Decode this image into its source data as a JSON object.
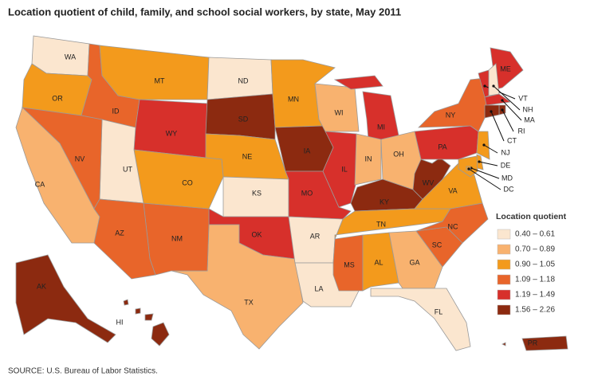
{
  "title": "Location quotient of child, family, and school social workers, by state, May 2011",
  "source": "SOURCE: U.S. Bureau of Labor Statistics.",
  "legend": {
    "title": "Location quotient",
    "items": [
      {
        "label": "0.40 – 0.61",
        "color": "#fbe6cf"
      },
      {
        "label": "0.70 – 0.89",
        "color": "#f8b26f"
      },
      {
        "label": "0.90 – 1.05",
        "color": "#f39a1c"
      },
      {
        "label": "1.09 – 1.18",
        "color": "#e8652a"
      },
      {
        "label": "1.19 – 1.49",
        "color": "#d7302b"
      },
      {
        "label": "1.56 – 2.26",
        "color": "#8c2a10"
      }
    ]
  },
  "states": [
    {
      "name": "WA",
      "color": "#fbe6cf"
    },
    {
      "name": "OR",
      "color": "#f39a1c"
    },
    {
      "name": "ID",
      "color": "#e8652a"
    },
    {
      "name": "MT",
      "color": "#f39a1c"
    },
    {
      "name": "WY",
      "color": "#d7302b"
    },
    {
      "name": "ND",
      "color": "#fbe6cf"
    },
    {
      "name": "SD",
      "color": "#8c2a10"
    },
    {
      "name": "NE",
      "color": "#f39a1c"
    },
    {
      "name": "KS",
      "color": "#fbe6cf"
    },
    {
      "name": "OK",
      "color": "#d7302b"
    },
    {
      "name": "TX",
      "color": "#f8b26f"
    },
    {
      "name": "NM",
      "color": "#e8652a"
    },
    {
      "name": "CO",
      "color": "#f39a1c"
    },
    {
      "name": "UT",
      "color": "#fbe6cf"
    },
    {
      "name": "NV",
      "color": "#e8652a"
    },
    {
      "name": "CA",
      "color": "#f8b26f"
    },
    {
      "name": "AZ",
      "color": "#e8652a"
    },
    {
      "name": "MN",
      "color": "#f39a1c"
    },
    {
      "name": "IA",
      "color": "#8c2a10"
    },
    {
      "name": "MO",
      "color": "#d7302b"
    },
    {
      "name": "AR",
      "color": "#fbe6cf"
    },
    {
      "name": "LA",
      "color": "#fbe6cf"
    },
    {
      "name": "WI",
      "color": "#f8b26f"
    },
    {
      "name": "IL",
      "color": "#d7302b"
    },
    {
      "name": "MI",
      "color": "#d7302b"
    },
    {
      "name": "IN",
      "color": "#f8b26f"
    },
    {
      "name": "OH",
      "color": "#f8b26f"
    },
    {
      "name": "KY",
      "color": "#8c2a10"
    },
    {
      "name": "TN",
      "color": "#f39a1c"
    },
    {
      "name": "MS",
      "color": "#e8652a"
    },
    {
      "name": "AL",
      "color": "#f39a1c"
    },
    {
      "name": "GA",
      "color": "#f8b26f"
    },
    {
      "name": "FL",
      "color": "#fbe6cf"
    },
    {
      "name": "SC",
      "color": "#e8652a"
    },
    {
      "name": "NC",
      "color": "#e8652a"
    },
    {
      "name": "VA",
      "color": "#f39a1c"
    },
    {
      "name": "WV",
      "color": "#8c2a10"
    },
    {
      "name": "PA",
      "color": "#d7302b"
    },
    {
      "name": "NY",
      "color": "#e8652a"
    },
    {
      "name": "ME",
      "color": "#d7302b"
    },
    {
      "name": "VT",
      "color": "#d7302b"
    },
    {
      "name": "NH",
      "color": "#fbe6cf"
    },
    {
      "name": "MA",
      "color": "#d7302b"
    },
    {
      "name": "RI",
      "color": "#8c2a10"
    },
    {
      "name": "CT",
      "color": "#8c2a10"
    },
    {
      "name": "NJ",
      "color": "#f39a1c"
    },
    {
      "name": "DE",
      "color": "#f39a1c"
    },
    {
      "name": "MD",
      "color": "#f39a1c"
    },
    {
      "name": "DC",
      "color": "#f39a1c"
    },
    {
      "name": "AK",
      "color": "#8c2a10"
    },
    {
      "name": "HI",
      "color": "#8c2a10"
    },
    {
      "name": "PR",
      "color": "#8c2a10"
    }
  ]
}
